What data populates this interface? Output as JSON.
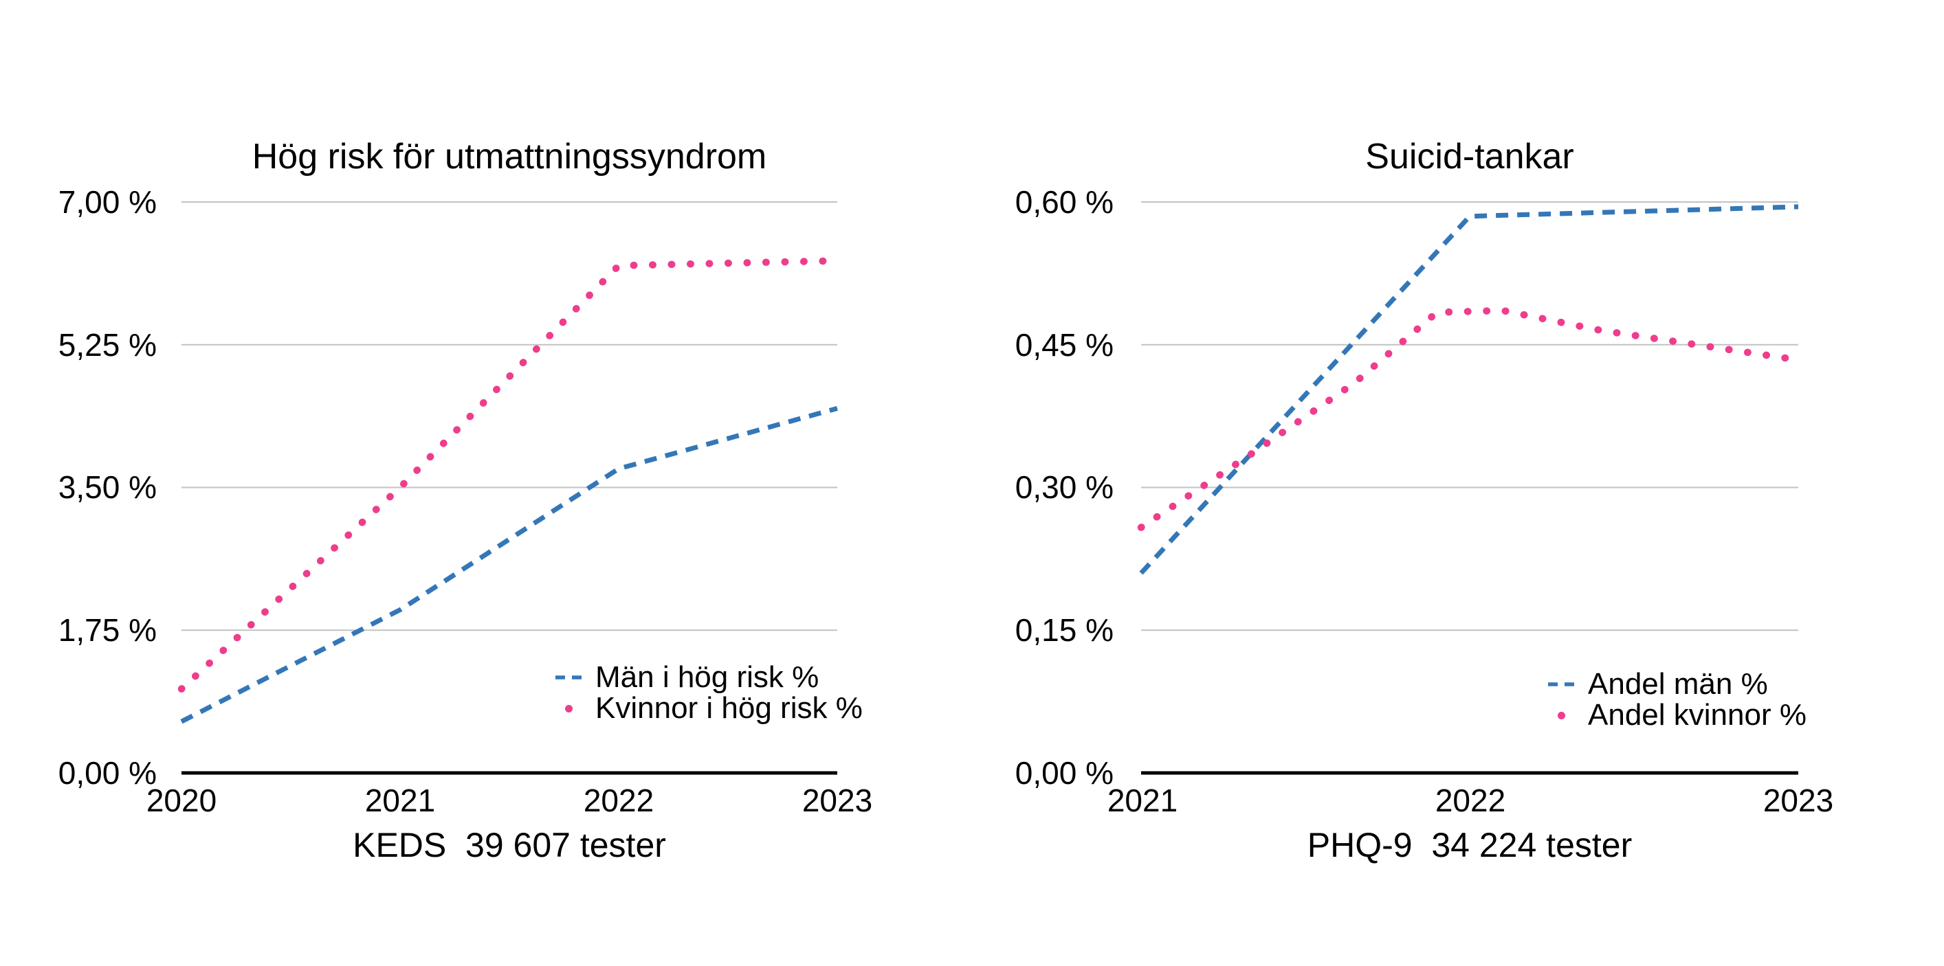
{
  "page": {
    "background": "#ffffff"
  },
  "colors": {
    "men_blue": "#3377b8",
    "women_pink": "#ee3d8c",
    "gridline": "#c2c2c2",
    "axis": "#000000"
  },
  "charts": [
    {
      "title": "Hög risk för utmattningssyndrom",
      "caption": "KEDS  39 607 tester",
      "y_ticks": [
        "7,00 %",
        "5,25 %",
        "3,50 %",
        "1,75 %",
        "0,00 %"
      ],
      "x_ticks": [
        "2020",
        "2021",
        "2022",
        "2023"
      ],
      "legend": [
        {
          "label": "Män i hög risk %",
          "marker": "dashed-line",
          "color": "#3377b8"
        },
        {
          "label": "Kvinnor i hög risk %",
          "marker": "dot",
          "color": "#ee3d8c"
        }
      ],
      "chart_data": {
        "type": "line",
        "title": "Hög risk för utmattningssyndrom",
        "xlabel": "KEDS  39 607 tester",
        "ylabel": "",
        "xlim": [
          2020,
          2023
        ],
        "ylim": [
          0,
          7
        ],
        "grid": true,
        "legend_position": "inside-bottom-right",
        "x": [
          2020,
          2021,
          2022,
          2023
        ],
        "series": [
          {
            "name": "Män i hög risk %",
            "style": "dashed",
            "color": "#3377b8",
            "x": [
              2020,
              2021,
              2022,
              2023
            ],
            "values": [
              0.63,
              2.0,
              3.73,
              4.47
            ]
          },
          {
            "name": "Kvinnor i hög risk %",
            "style": "dotted",
            "color": "#ee3d8c",
            "x": [
              2020,
              2021,
              2022,
              2023
            ],
            "values": [
              1.03,
              3.5,
              6.22,
              6.28
            ]
          }
        ]
      }
    },
    {
      "title": "Suicid-tankar",
      "caption": "PHQ-9  34 224 tester",
      "y_ticks": [
        "0,60 %",
        "0,45 %",
        "0,30 %",
        "0,15 %",
        "0,00 %"
      ],
      "x_ticks": [
        "2021",
        "2022",
        "2023"
      ],
      "legend": [
        {
          "label": "Andel män %",
          "marker": "dashed-line",
          "color": "#3377b8"
        },
        {
          "label": "Andel kvinnor %",
          "marker": "dot",
          "color": "#ee3d8c"
        }
      ],
      "chart_data": {
        "type": "line",
        "title": "Suicid-tankar",
        "xlabel": "PHQ-9  34 224 tester",
        "ylabel": "",
        "xlim": [
          2021,
          2023
        ],
        "ylim": [
          0,
          0.6
        ],
        "grid": true,
        "legend_position": "inside-bottom-right",
        "x": [
          2021,
          2022,
          2023
        ],
        "series": [
          {
            "name": "Andel män %",
            "style": "dashed",
            "color": "#3377b8",
            "x": [
              2021,
              2022,
              2023
            ],
            "values": [
              0.21,
              0.585,
              0.595
            ]
          },
          {
            "name": "Andel kvinnor %",
            "style": "dotted",
            "color": "#ee3d8c",
            "x": [
              2021,
              2021.33,
              2021.65,
              2021.9,
              2022.1,
              2022.4,
              2023
            ],
            "values": [
              0.258,
              0.334,
              0.41,
              0.484,
              0.486,
              0.465,
              0.434
            ]
          }
        ]
      }
    }
  ]
}
